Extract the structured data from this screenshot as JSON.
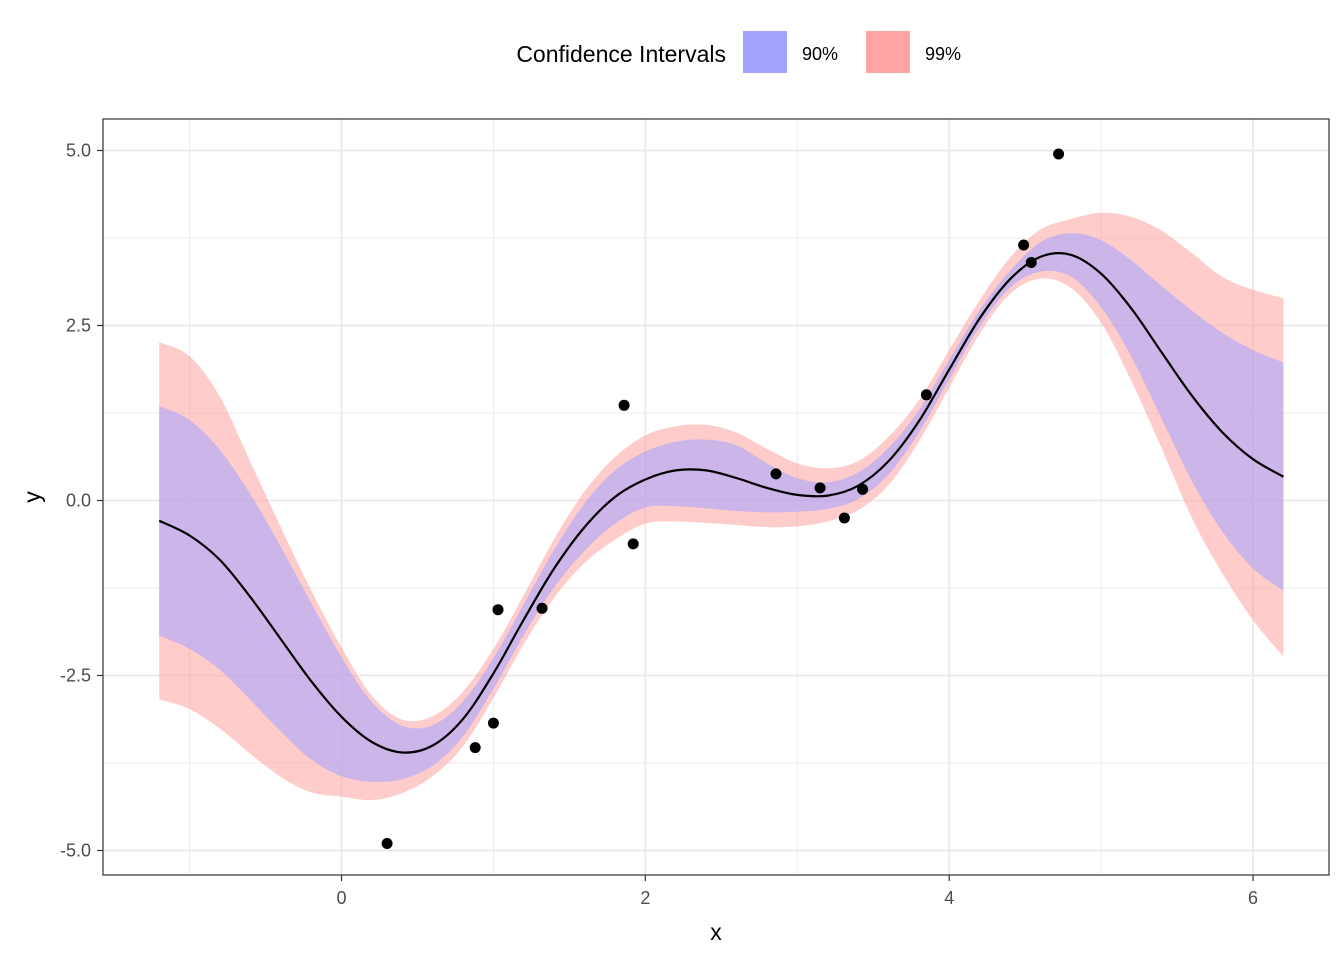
{
  "chart_data": {
    "type": "line",
    "xlabel": "x",
    "ylabel": "y",
    "xlim": [
      -1.57,
      6.5
    ],
    "ylim": [
      -5.35,
      5.45
    ],
    "x_ticks": [
      0,
      2,
      4,
      6
    ],
    "x_tick_labels": [
      "0",
      "2",
      "4",
      "6"
    ],
    "y_ticks": [
      -5,
      -2.5,
      0,
      2.5,
      5
    ],
    "y_tick_labels": [
      "-5.0",
      "-2.5",
      "0.0",
      "2.5",
      "5.0"
    ],
    "grid": true,
    "legend": {
      "position": "top",
      "title": "Confidence Intervals",
      "entries": [
        {
          "label": "90%",
          "color": "#a3a3ff"
        },
        {
          "label": "99%",
          "color": "#ffa3a3"
        }
      ]
    },
    "colors": {
      "ci90": "#a3a3ff",
      "ci99": "#ffa3a3",
      "overlap": "#cba3d8",
      "line": "#000000",
      "points": "#000000",
      "grid": "#ebebeb",
      "panel_border": "#333333",
      "tick_label": "#4d4d4d"
    },
    "mean_curve": {
      "x": [
        -1.2,
        -1.0,
        -0.8,
        -0.6,
        -0.4,
        -0.2,
        0.0,
        0.2,
        0.4,
        0.6,
        0.8,
        1.0,
        1.2,
        1.4,
        1.6,
        1.8,
        2.0,
        2.2,
        2.4,
        2.6,
        2.8,
        3.0,
        3.2,
        3.4,
        3.6,
        3.8,
        4.0,
        4.2,
        4.4,
        4.6,
        4.8,
        5.0,
        5.2,
        5.4,
        5.6,
        5.8,
        6.0,
        6.2
      ],
      "y": [
        -0.29,
        -0.5,
        -0.85,
        -1.38,
        -1.98,
        -2.58,
        -3.09,
        -3.45,
        -3.6,
        -3.5,
        -3.12,
        -2.47,
        -1.7,
        -0.97,
        -0.38,
        0.05,
        0.3,
        0.43,
        0.43,
        0.32,
        0.18,
        0.08,
        0.07,
        0.21,
        0.56,
        1.13,
        1.87,
        2.6,
        3.16,
        3.48,
        3.51,
        3.24,
        2.74,
        2.11,
        1.49,
        0.97,
        0.59,
        0.34
      ]
    },
    "ci90": {
      "x": [
        -1.2,
        -1.0,
        -0.8,
        -0.6,
        -0.4,
        -0.2,
        0.0,
        0.2,
        0.4,
        0.6,
        0.8,
        1.0,
        1.2,
        1.4,
        1.6,
        1.8,
        2.0,
        2.2,
        2.4,
        2.6,
        2.8,
        3.0,
        3.2,
        3.4,
        3.6,
        3.8,
        4.0,
        4.2,
        4.4,
        4.6,
        4.8,
        5.0,
        5.2,
        5.4,
        5.6,
        5.8,
        6.0,
        6.2
      ],
      "lower": [
        -1.93,
        -2.12,
        -2.42,
        -2.85,
        -3.3,
        -3.7,
        -3.94,
        -4.02,
        -3.98,
        -3.79,
        -3.37,
        -2.69,
        -1.92,
        -1.24,
        -0.72,
        -0.33,
        -0.1,
        -0.08,
        -0.11,
        -0.15,
        -0.17,
        -0.16,
        -0.12,
        0.02,
        0.37,
        0.97,
        1.73,
        2.48,
        3.04,
        3.27,
        3.2,
        2.76,
        2.05,
        1.16,
        0.27,
        -0.45,
        -0.97,
        -1.29
      ],
      "upper": [
        1.35,
        1.15,
        0.72,
        0.09,
        -0.66,
        -1.46,
        -2.24,
        -2.88,
        -3.22,
        -3.21,
        -2.87,
        -2.25,
        -1.48,
        -0.7,
        -0.04,
        0.43,
        0.7,
        0.84,
        0.87,
        0.79,
        0.53,
        0.32,
        0.26,
        0.4,
        0.75,
        1.29,
        2.01,
        2.72,
        3.28,
        3.69,
        3.82,
        3.72,
        3.43,
        3.06,
        2.71,
        2.39,
        2.15,
        1.97
      ]
    },
    "ci99": {
      "x": [
        -1.2,
        -1.0,
        -0.8,
        -0.6,
        -0.4,
        -0.2,
        0.0,
        0.2,
        0.4,
        0.6,
        0.8,
        1.0,
        1.2,
        1.4,
        1.6,
        1.8,
        2.0,
        2.2,
        2.4,
        2.6,
        2.8,
        3.0,
        3.2,
        3.4,
        3.6,
        3.8,
        4.0,
        4.2,
        4.4,
        4.6,
        4.8,
        5.0,
        5.2,
        5.4,
        5.6,
        5.8,
        6.0,
        6.2
      ],
      "lower": [
        -2.84,
        -2.98,
        -3.26,
        -3.62,
        -3.95,
        -4.17,
        -4.23,
        -4.28,
        -4.18,
        -3.94,
        -3.51,
        -2.82,
        -2.05,
        -1.39,
        -0.89,
        -0.56,
        -0.33,
        -0.3,
        -0.32,
        -0.35,
        -0.38,
        -0.37,
        -0.3,
        -0.14,
        0.22,
        0.84,
        1.61,
        2.38,
        2.95,
        3.17,
        3.04,
        2.54,
        1.7,
        0.74,
        -0.26,
        -1.05,
        -1.71,
        -2.23
      ],
      "upper": [
        2.26,
        2.06,
        1.48,
        0.55,
        -0.38,
        -1.28,
        -2.1,
        -2.79,
        -3.13,
        -3.08,
        -2.73,
        -2.12,
        -1.35,
        -0.55,
        0.13,
        0.62,
        0.93,
        1.06,
        1.08,
        0.97,
        0.74,
        0.53,
        0.46,
        0.56,
        0.91,
        1.43,
        2.15,
        2.86,
        3.47,
        3.87,
        4.02,
        4.11,
        4.05,
        3.85,
        3.53,
        3.19,
        3.01,
        2.89
      ]
    },
    "points": {
      "x": [
        0.3,
        0.88,
        1.0,
        1.03,
        1.32,
        1.86,
        1.92,
        2.86,
        3.15,
        3.31,
        3.43,
        3.85,
        4.49,
        4.54,
        4.72
      ],
      "y": [
        -4.9,
        -3.53,
        -3.18,
        -1.56,
        -1.54,
        1.36,
        -0.62,
        0.38,
        0.18,
        -0.25,
        0.16,
        1.51,
        3.65,
        3.4,
        4.95
      ]
    }
  }
}
